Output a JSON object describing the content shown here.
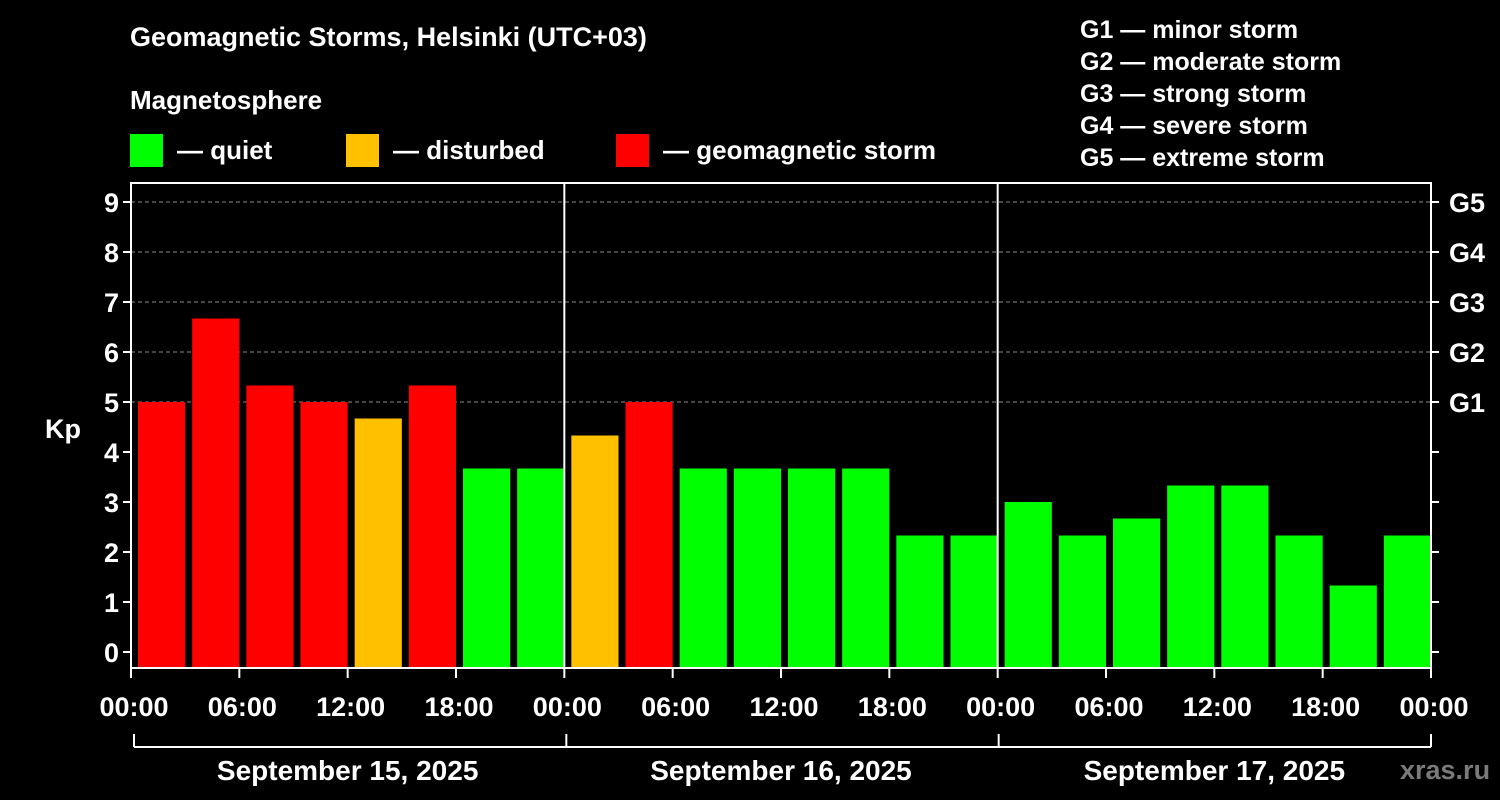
{
  "title": "Geomagnetic Storms, Helsinki (UTC+03)",
  "legend": {
    "heading": "Magnetosphere",
    "items": [
      {
        "label": "— quiet",
        "color": "#00ff00"
      },
      {
        "label": "— disturbed",
        "color": "#ffc000"
      },
      {
        "label": "— geomagnetic storm",
        "color": "#ff0000"
      }
    ]
  },
  "storm_scale": [
    "G1 — minor storm",
    "G2 — moderate storm",
    "G3 — strong storm",
    "G4 — severe storm",
    "G5 — extreme storm"
  ],
  "watermark": "xras.ru",
  "chart_data": {
    "type": "bar",
    "ylabel": "Kp",
    "ylim": [
      0,
      9
    ],
    "yticks": [
      "0",
      "1",
      "2",
      "3",
      "4",
      "5",
      "6",
      "7",
      "8",
      "9"
    ],
    "right_ticks": [
      {
        "value": 5,
        "label": "G1"
      },
      {
        "value": 6,
        "label": "G2"
      },
      {
        "value": 7,
        "label": "G3"
      },
      {
        "value": 8,
        "label": "G4"
      },
      {
        "value": 9,
        "label": "G5"
      }
    ],
    "xticks": [
      "00:00",
      "06:00",
      "12:00",
      "18:00",
      "00:00",
      "06:00",
      "12:00",
      "18:00",
      "00:00",
      "06:00",
      "12:00",
      "18:00",
      "00:00"
    ],
    "days": [
      "September 15, 2025",
      "September 16, 2025",
      "September 17, 2025"
    ],
    "grid": "dashed horizontal",
    "series": [
      {
        "values": [
          5.0,
          6.67,
          5.33,
          5.0,
          4.67,
          5.33,
          3.67,
          3.67,
          4.33,
          5.0,
          3.67,
          3.67,
          3.67,
          3.67,
          2.33,
          2.33,
          3.0,
          2.33,
          2.67,
          3.33,
          3.33,
          2.33,
          1.33,
          2.33
        ],
        "levels": [
          "storm",
          "storm",
          "storm",
          "storm",
          "disturbed",
          "storm",
          "quiet",
          "quiet",
          "disturbed",
          "storm",
          "quiet",
          "quiet",
          "quiet",
          "quiet",
          "quiet",
          "quiet",
          "quiet",
          "quiet",
          "quiet",
          "quiet",
          "quiet",
          "quiet",
          "quiet",
          "quiet"
        ]
      }
    ],
    "level_colors": {
      "quiet": "#00ff00",
      "disturbed": "#ffc000",
      "storm": "#ff0000"
    }
  }
}
